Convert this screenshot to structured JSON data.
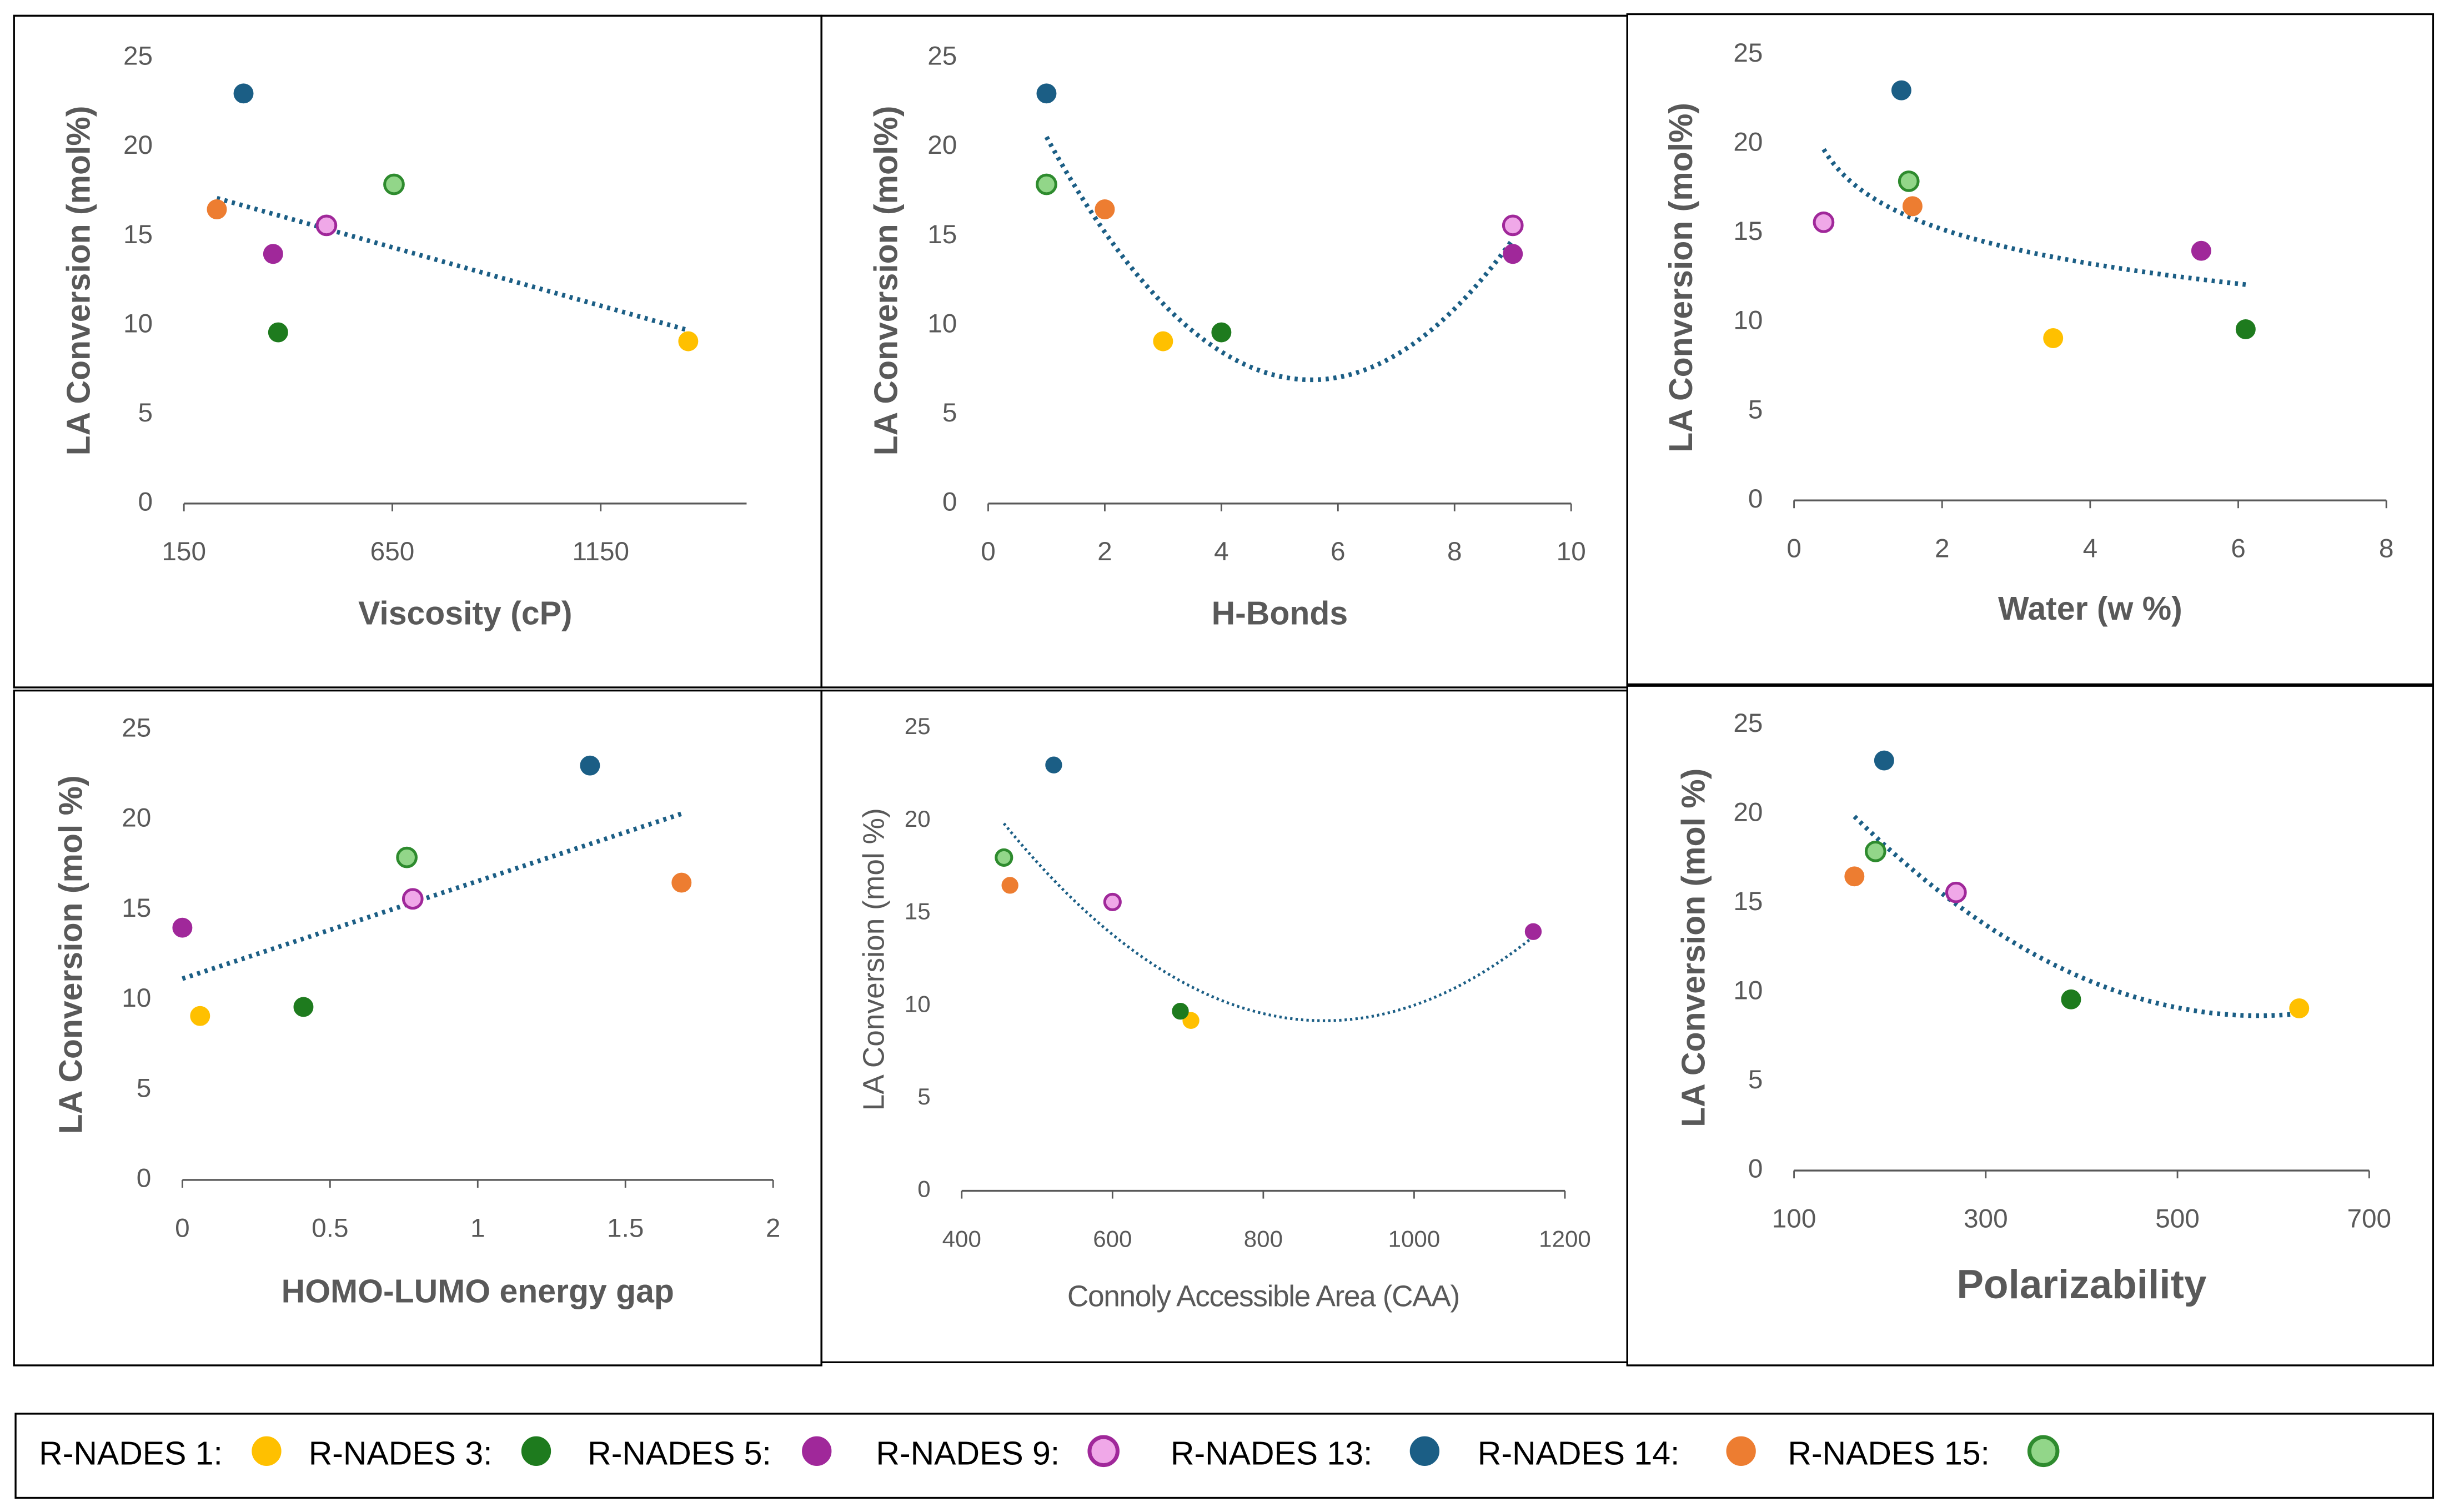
{
  "chart_data": [
    {
      "type": "scatter",
      "ylabel": "LA Conversion (mol%)",
      "xlabel": "Viscosity (cP)",
      "x": [
        1360,
        376,
        364,
        492,
        293,
        229,
        654
      ],
      "y": [
        9.1,
        9.6,
        14,
        15.6,
        23,
        16.5,
        17.9
      ],
      "xlim": [
        150,
        1500
      ],
      "xticks": [
        150,
        650,
        1150
      ],
      "ylim": [
        0,
        25
      ],
      "yticks": [
        0,
        5,
        10,
        15,
        20,
        25
      ],
      "trendline": "linear",
      "trendline_color": "#1B5E85"
    },
    {
      "type": "scatter",
      "ylabel": "LA Conversion (mol%)",
      "xlabel": "H-Bonds",
      "x": [
        3,
        4,
        9,
        9,
        1,
        2,
        1
      ],
      "y": [
        9.1,
        9.6,
        14,
        15.6,
        23,
        16.5,
        17.9
      ],
      "xlim": [
        0,
        10
      ],
      "xticks": [
        0,
        2,
        4,
        6,
        8,
        10
      ],
      "ylim": [
        0,
        25
      ],
      "yticks": [
        0,
        5,
        10,
        15,
        20,
        25
      ],
      "trendline": "poly2",
      "trendline_color": "#1B5E85"
    },
    {
      "type": "scatter",
      "ylabel": "LA Conversion (mol%)",
      "xlabel": "Water (w %)",
      "x": [
        3.5,
        6.1,
        5.5,
        0.4,
        1.45,
        1.6,
        1.55
      ],
      "y": [
        9.1,
        9.6,
        14,
        15.6,
        23,
        16.5,
        17.9
      ],
      "xlim": [
        0,
        8
      ],
      "xticks": [
        0,
        2,
        4,
        6,
        8
      ],
      "ylim": [
        0,
        25
      ],
      "yticks": [
        0,
        5,
        10,
        15,
        20,
        25
      ],
      "trendline": "log",
      "trendline_color": "#1B5E85"
    },
    {
      "type": "scatter",
      "ylabel": "LA Conversion (mol %)",
      "xlabel": "HOMO-LUMO energy gap",
      "x": [
        0.06,
        0.41,
        0,
        0.78,
        1.38,
        1.69,
        0.76
      ],
      "y": [
        9.1,
        9.6,
        14,
        15.6,
        23,
        16.5,
        17.9
      ],
      "xlim": [
        0,
        2
      ],
      "xticks": [
        0,
        0.5,
        1,
        1.5,
        2
      ],
      "ylim": [
        0,
        25
      ],
      "yticks": [
        0,
        5,
        10,
        15,
        20,
        25
      ],
      "trendline": "linear",
      "trendline_color": "#1B5E85"
    },
    {
      "type": "scatter",
      "ylabel": "LA Conversion (mol %)",
      "xlabel": "Connoly Accessible Area (CAA)",
      "x": [
        704,
        690,
        1158,
        600,
        522,
        464,
        456
      ],
      "y": [
        9.2,
        9.7,
        14,
        15.6,
        23,
        16.5,
        18
      ],
      "xlim": [
        400,
        1200
      ],
      "xticks": [
        400,
        600,
        800,
        1000,
        1200
      ],
      "ylim": [
        0,
        25
      ],
      "yticks": [
        0,
        5,
        10,
        15,
        20,
        25
      ],
      "trendline": "poly2",
      "trendline_color": "#1B5E85"
    },
    {
      "type": "scatter",
      "ylabel": "LA Conversion (mol %)",
      "xlabel": "Polarizability",
      "x": [
        627,
        389,
        null,
        269,
        194,
        163,
        185
      ],
      "y": [
        9.1,
        9.6,
        null,
        15.6,
        23,
        16.5,
        17.9
      ],
      "xlim": [
        100,
        700
      ],
      "xticks": [
        100,
        300,
        500,
        700
      ],
      "ylim": [
        0,
        25
      ],
      "yticks": [
        0,
        5,
        10,
        15,
        20,
        25
      ],
      "trendline": "poly2",
      "trendline_color": "#1B5E85"
    }
  ],
  "legend": [
    {
      "name": "R-NADES 1:",
      "color": "#FFC000"
    },
    {
      "name": "R-NADES 3:",
      "color": "#1E7B1E"
    },
    {
      "name": "R-NADES 5:",
      "color": "#A0289A"
    },
    {
      "name": "R-NADES 9:",
      "color": "#F0A8E8",
      "edge": "#A0289A"
    },
    {
      "name": "R-NADES 13:",
      "color": "#1B5E85"
    },
    {
      "name": "R-NADES 14:",
      "color": "#ED7D31"
    },
    {
      "name": "R-NADES 15:",
      "color": "#92D689",
      "edge": "#2E8B2E"
    }
  ]
}
